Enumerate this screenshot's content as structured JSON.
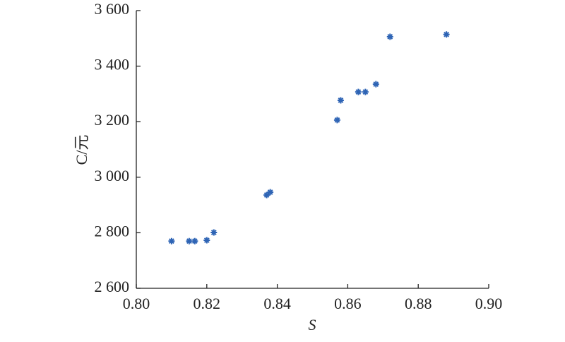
{
  "chart_data": {
    "type": "scatter",
    "x_label": "S",
    "y_label": "C/元",
    "series": [
      {
        "color": "#2e64b5",
        "x": [
          0.81,
          0.815,
          0.8166,
          0.82,
          0.822,
          0.837,
          0.838,
          0.857,
          0.858,
          0.863,
          0.865,
          0.868,
          0.872,
          0.888
        ],
        "values": [
          2770,
          2770,
          2770,
          2773,
          2801,
          2936,
          2946,
          3206,
          3277,
          3307,
          3307,
          3335,
          3506,
          3514
        ]
      }
    ],
    "xlim": [
      0.8,
      0.9
    ],
    "xticks": [
      {
        "value": 0.8,
        "label": "0.80"
      },
      {
        "value": 0.82,
        "label": "0.82"
      },
      {
        "value": 0.84,
        "label": "0.84"
      },
      {
        "value": 0.86,
        "label": "0.86"
      },
      {
        "value": 0.88,
        "label": "0.88"
      },
      {
        "value": 0.9,
        "label": "0.90"
      }
    ],
    "ylim": [
      2600,
      3600
    ],
    "yticks": [
      {
        "value": 2600,
        "label": "2 600"
      },
      {
        "value": 2800,
        "label": "2 800"
      },
      {
        "value": 3000,
        "label": "3 000"
      },
      {
        "value": 3200,
        "label": "3 200"
      },
      {
        "value": 3400,
        "label": "3 400"
      },
      {
        "value": 3600,
        "label": "3 600"
      }
    ],
    "grid": false
  }
}
